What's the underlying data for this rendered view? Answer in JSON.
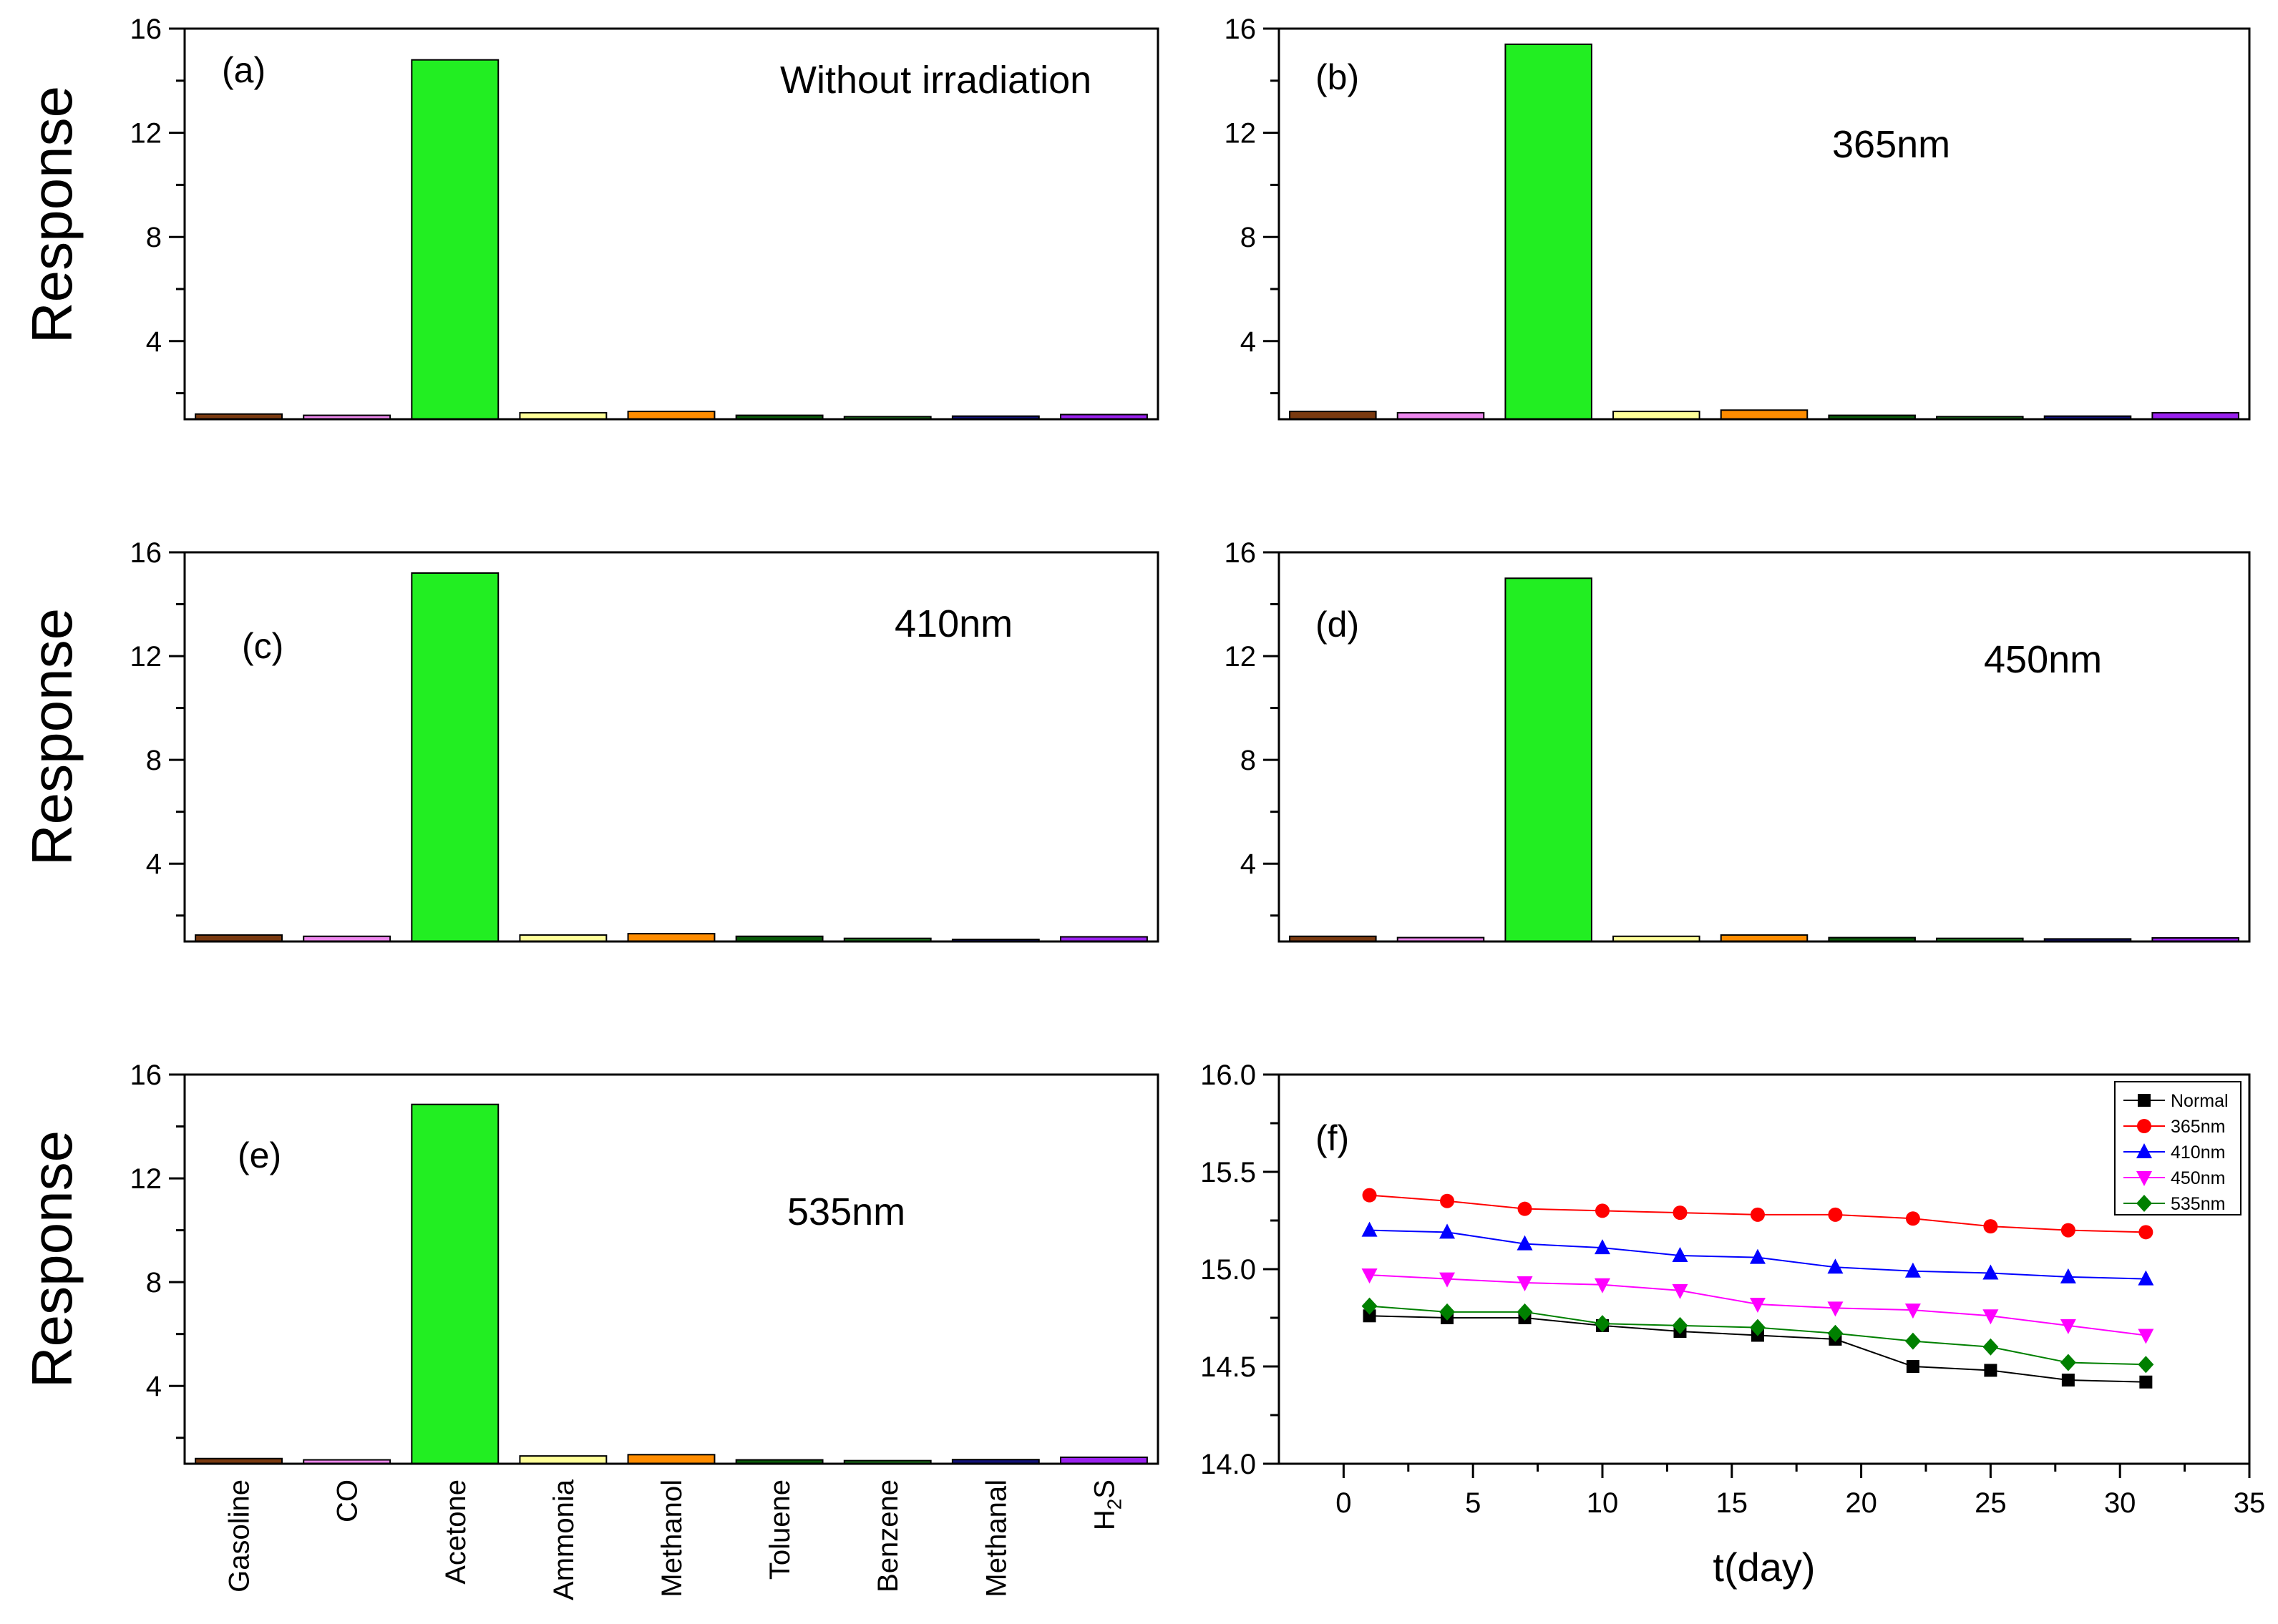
{
  "colors": {
    "gasoline": "#7a3a10",
    "co": "#ee88ee",
    "acetone": "#22ee22",
    "ammonia": "#ffff99",
    "methanol": "#ff8c00",
    "toluene": "#0a5a0a",
    "benzene": "#1e7a1e",
    "methanal": "#12127a",
    "h2s": "#9a22ee",
    "normal": "#000000",
    "nm365": "#ff0000",
    "nm410": "#0000ff",
    "nm450": "#ff00ff",
    "nm535": "#008000"
  },
  "chart_data": [
    {
      "type": "bar",
      "panel": "(a)",
      "annotation": "Without irradiation",
      "ylabel": "Response",
      "ylim": [
        1,
        16
      ],
      "yticks": [
        4,
        8,
        12,
        16
      ],
      "categories": [
        "Gasoline",
        "CO",
        "Acetone",
        "Ammonia",
        "Methanol",
        "Toluene",
        "Benzene",
        "Methanal",
        "H2S"
      ],
      "values": [
        1.2,
        1.15,
        14.8,
        1.25,
        1.3,
        1.15,
        1.1,
        1.12,
        1.18
      ]
    },
    {
      "type": "bar",
      "panel": "(b)",
      "annotation": "365nm",
      "ylabel": "",
      "ylim": [
        1,
        16
      ],
      "yticks": [
        4,
        8,
        12,
        16
      ],
      "categories": [
        "Gasoline",
        "CO",
        "Acetone",
        "Ammonia",
        "Methanol",
        "Toluene",
        "Benzene",
        "Methanal",
        "H2S"
      ],
      "values": [
        1.3,
        1.25,
        15.4,
        1.3,
        1.35,
        1.15,
        1.1,
        1.12,
        1.25
      ]
    },
    {
      "type": "bar",
      "panel": "(c)",
      "annotation": "410nm",
      "ylabel": "Response",
      "ylim": [
        1,
        16
      ],
      "yticks": [
        4,
        8,
        12,
        16
      ],
      "categories": [
        "Gasoline",
        "CO",
        "Acetone",
        "Ammonia",
        "Methanol",
        "Toluene",
        "Benzene",
        "Methanal",
        "H2S"
      ],
      "values": [
        1.25,
        1.2,
        15.2,
        1.25,
        1.3,
        1.2,
        1.12,
        1.08,
        1.18
      ]
    },
    {
      "type": "bar",
      "panel": "(d)",
      "annotation": "450nm",
      "ylabel": "",
      "ylim": [
        1,
        16
      ],
      "yticks": [
        4,
        8,
        12,
        16
      ],
      "categories": [
        "Gasoline",
        "CO",
        "Acetone",
        "Ammonia",
        "Methanol",
        "Toluene",
        "Benzene",
        "Methanal",
        "H2S"
      ],
      "values": [
        1.2,
        1.15,
        15.0,
        1.2,
        1.25,
        1.15,
        1.12,
        1.1,
        1.14
      ]
    },
    {
      "type": "bar",
      "panel": "(e)",
      "annotation": "535nm",
      "ylabel": "Response",
      "ylim": [
        1,
        16
      ],
      "yticks": [
        4,
        8,
        12,
        16
      ],
      "categories": [
        "Gasoline",
        "CO",
        "Acetone",
        "Ammonia",
        "Methanol",
        "Toluene",
        "Benzene",
        "Methanal",
        "H2S"
      ],
      "values": [
        1.2,
        1.15,
        14.85,
        1.3,
        1.35,
        1.15,
        1.12,
        1.16,
        1.25
      ]
    },
    {
      "type": "line",
      "panel": "(f)",
      "xlabel": "t(day)",
      "xlim": [
        -2.5,
        35
      ],
      "xticks": [
        0,
        5,
        10,
        15,
        20,
        25,
        30,
        35
      ],
      "ylim": [
        14.0,
        16.0
      ],
      "yticks": [
        "14.0",
        "14.5",
        "15.0",
        "15.5",
        "16.0"
      ],
      "legend_position": "top-right",
      "x": [
        1,
        4,
        7,
        10,
        13,
        16,
        19,
        22,
        25,
        28,
        31
      ],
      "series": [
        {
          "name": "Normal",
          "marker": "square",
          "values": [
            14.76,
            14.75,
            14.75,
            14.71,
            14.68,
            14.66,
            14.64,
            14.5,
            14.48,
            14.43,
            14.42
          ]
        },
        {
          "name": "365nm",
          "marker": "circle",
          "values": [
            15.38,
            15.35,
            15.31,
            15.3,
            15.29,
            15.28,
            15.28,
            15.26,
            15.22,
            15.2,
            15.19
          ]
        },
        {
          "name": "410nm",
          "marker": "triangle-up",
          "values": [
            15.2,
            15.19,
            15.13,
            15.11,
            15.07,
            15.06,
            15.01,
            14.99,
            14.98,
            14.96,
            14.95
          ]
        },
        {
          "name": "450nm",
          "marker": "triangle-down",
          "values": [
            14.97,
            14.95,
            14.93,
            14.92,
            14.89,
            14.82,
            14.8,
            14.79,
            14.76,
            14.71,
            14.66
          ]
        },
        {
          "name": "535nm",
          "marker": "diamond",
          "values": [
            14.81,
            14.78,
            14.78,
            14.72,
            14.71,
            14.7,
            14.67,
            14.63,
            14.6,
            14.52,
            14.51
          ]
        }
      ]
    }
  ]
}
